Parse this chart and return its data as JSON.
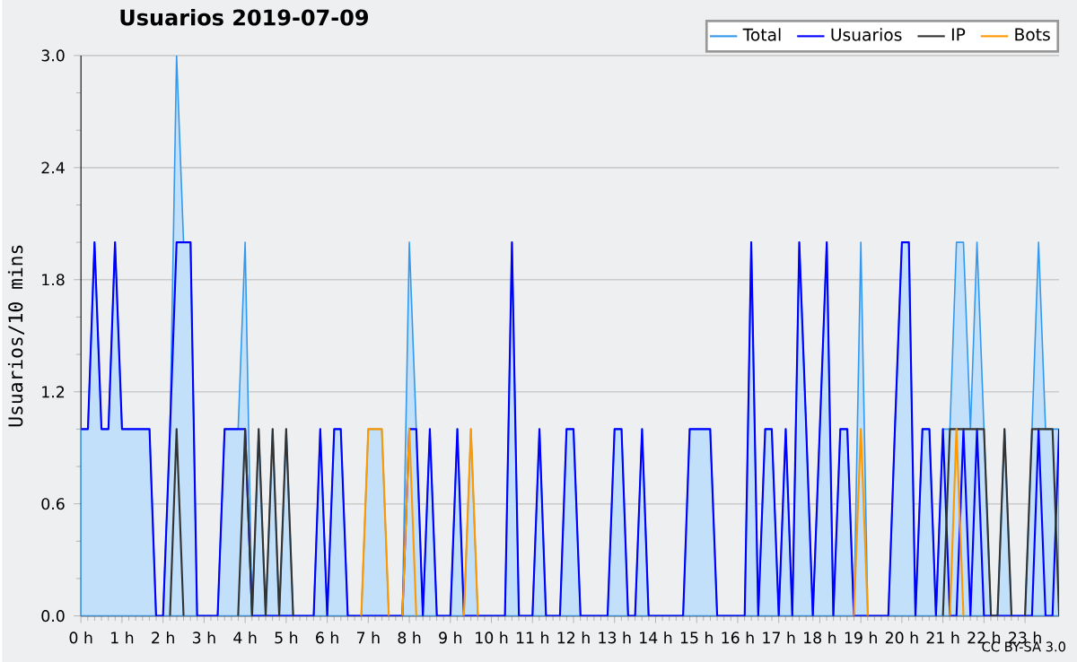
{
  "chart_data": {
    "type": "line",
    "title": "Usuarios  2019-07-09",
    "ylabel": "Usuarios/10 mins",
    "annotations": [
      "CC BY-SA 3.0"
    ],
    "x": [
      0,
      0.17,
      0.33,
      0.5,
      0.67,
      0.83,
      1,
      1.17,
      1.33,
      1.5,
      1.67,
      1.83,
      2,
      2.17,
      2.33,
      2.5,
      2.67,
      2.83,
      3,
      3.17,
      3.33,
      3.5,
      3.67,
      3.83,
      4,
      4.17,
      4.33,
      4.5,
      4.67,
      4.83,
      5,
      5.17,
      5.33,
      5.5,
      5.67,
      5.83,
      6,
      6.17,
      6.33,
      6.5,
      6.67,
      6.83,
      7,
      7.17,
      7.33,
      7.5,
      7.67,
      7.83,
      8,
      8.17,
      8.33,
      8.5,
      8.67,
      8.83,
      9,
      9.17,
      9.33,
      9.5,
      9.67,
      9.83,
      10,
      10.17,
      10.33,
      10.5,
      10.67,
      10.83,
      11,
      11.17,
      11.33,
      11.5,
      11.67,
      11.83,
      12,
      12.17,
      12.33,
      12.5,
      12.67,
      12.83,
      13,
      13.17,
      13.33,
      13.5,
      13.67,
      13.83,
      14,
      14.17,
      14.33,
      14.5,
      14.67,
      14.83,
      15,
      15.17,
      15.33,
      15.5,
      15.67,
      15.83,
      16,
      16.17,
      16.33,
      16.5,
      16.67,
      16.83,
      17,
      17.17,
      17.33,
      17.5,
      17.67,
      17.83,
      18,
      18.17,
      18.33,
      18.5,
      18.67,
      18.83,
      19,
      19.17,
      19.33,
      19.5,
      19.67,
      19.83,
      20,
      20.17,
      20.33,
      20.5,
      20.67,
      20.83,
      21,
      21.17,
      21.33,
      21.5,
      21.67,
      21.83,
      22,
      22.17,
      22.33,
      22.5,
      22.67,
      22.83,
      23,
      23.17,
      23.33,
      23.5,
      23.67,
      23.83
    ],
    "series": [
      {
        "name": "Total",
        "type": "area",
        "color": "#3399ee",
        "values": [
          1,
          1,
          2,
          1,
          1,
          2,
          1,
          1,
          1,
          1,
          1,
          0,
          0,
          1,
          3,
          2,
          2,
          0,
          0,
          0,
          0,
          1,
          1,
          1,
          2,
          0,
          1,
          0,
          1,
          0,
          1,
          0,
          0,
          0,
          0,
          1,
          0,
          1,
          1,
          0,
          0,
          0,
          1,
          1,
          1,
          0,
          0,
          0,
          2,
          1,
          0,
          1,
          0,
          0,
          0,
          1,
          0,
          1,
          0,
          0,
          0,
          0,
          0,
          2,
          0,
          0,
          0,
          1,
          0,
          0,
          0,
          1,
          1,
          0,
          0,
          0,
          0,
          0,
          1,
          1,
          0,
          0,
          1,
          0,
          0,
          0,
          0,
          0,
          0,
          1,
          1,
          1,
          1,
          0,
          0,
          0,
          0,
          0,
          2,
          0,
          1,
          1,
          0,
          1,
          0,
          2,
          1,
          0,
          1,
          2,
          0,
          1,
          1,
          0,
          2,
          0,
          0,
          0,
          0,
          1,
          2,
          2,
          0,
          1,
          1,
          0,
          1,
          1,
          2,
          2,
          1,
          2,
          1,
          0,
          0,
          1,
          0,
          0,
          0,
          1,
          2,
          1,
          1,
          1
        ]
      },
      {
        "name": "Usuarios",
        "type": "line",
        "color": "#0000ff",
        "values": [
          1,
          1,
          2,
          1,
          1,
          2,
          1,
          1,
          1,
          1,
          1,
          0,
          0,
          1,
          2,
          2,
          2,
          0,
          0,
          0,
          0,
          1,
          1,
          1,
          1,
          0,
          0,
          0,
          0,
          0,
          0,
          0,
          0,
          0,
          0,
          1,
          0,
          1,
          1,
          0,
          0,
          0,
          0,
          0,
          0,
          0,
          0,
          0,
          1,
          1,
          0,
          1,
          0,
          0,
          0,
          1,
          0,
          0,
          0,
          0,
          0,
          0,
          0,
          2,
          0,
          0,
          0,
          1,
          0,
          0,
          0,
          1,
          1,
          0,
          0,
          0,
          0,
          0,
          1,
          1,
          0,
          0,
          1,
          0,
          0,
          0,
          0,
          0,
          0,
          1,
          1,
          1,
          1,
          0,
          0,
          0,
          0,
          0,
          2,
          0,
          1,
          1,
          0,
          1,
          0,
          2,
          1,
          0,
          1,
          2,
          0,
          1,
          1,
          0,
          0,
          0,
          0,
          0,
          0,
          1,
          2,
          2,
          0,
          1,
          1,
          0,
          1,
          0,
          0,
          1,
          0,
          1,
          0,
          0,
          0,
          0,
          0,
          0,
          0,
          0,
          1,
          0,
          0,
          1
        ]
      },
      {
        "name": "IP",
        "type": "line",
        "color": "#333333",
        "x": [
          2.17,
          2.33,
          2.5,
          3,
          3.83,
          4,
          4.17,
          4.33,
          4.5,
          4.67,
          4.83,
          5,
          5.17,
          12,
          21,
          21.17,
          21.33,
          21.5,
          21.67,
          21.83,
          22,
          22.17,
          22.33,
          22.5,
          22.67,
          22.83,
          23,
          23.17,
          23.33,
          23.5,
          23.67,
          23.83
        ],
        "values": [
          0,
          1,
          0,
          null,
          0,
          1,
          0,
          1,
          0,
          1,
          0,
          1,
          0,
          null,
          0,
          1,
          1,
          1,
          1,
          1,
          1,
          0,
          0,
          1,
          0,
          null,
          0,
          1,
          1,
          1,
          1,
          0
        ]
      },
      {
        "name": "Bots",
        "type": "line",
        "color": "#ff9900",
        "x": [
          6.83,
          7,
          7.17,
          7.33,
          7.5,
          7.67,
          7.83,
          8,
          8.17,
          9,
          9.33,
          9.5,
          9.67,
          15,
          18.83,
          19,
          19.17,
          20,
          21.17,
          21.33,
          21.5
        ],
        "values": [
          0,
          1,
          1,
          1,
          0,
          null,
          0,
          1,
          0,
          null,
          0,
          1,
          0,
          null,
          0,
          1,
          0,
          null,
          0,
          1,
          0
        ]
      }
    ],
    "xlim": [
      0,
      23.83
    ],
    "xticks": [
      {
        "value": 0,
        "label": "0 h"
      },
      {
        "value": 1,
        "label": "1 h"
      },
      {
        "value": 2,
        "label": "2 h"
      },
      {
        "value": 3,
        "label": "3 h"
      },
      {
        "value": 4,
        "label": "4 h"
      },
      {
        "value": 5,
        "label": "5 h"
      },
      {
        "value": 6,
        "label": "6 h"
      },
      {
        "value": 7,
        "label": "7 h"
      },
      {
        "value": 8,
        "label": "8 h"
      },
      {
        "value": 9,
        "label": "9 h"
      },
      {
        "value": 10,
        "label": "10 h"
      },
      {
        "value": 11,
        "label": "11 h"
      },
      {
        "value": 12,
        "label": "12 h"
      },
      {
        "value": 13,
        "label": "13 h"
      },
      {
        "value": 14,
        "label": "14 h"
      },
      {
        "value": 15,
        "label": "15 h"
      },
      {
        "value": 16,
        "label": "16 h"
      },
      {
        "value": 17,
        "label": "17 h"
      },
      {
        "value": 18,
        "label": "18 h"
      },
      {
        "value": 19,
        "label": "19 h"
      },
      {
        "value": 20,
        "label": "20 h"
      },
      {
        "value": 21,
        "label": "21 h"
      },
      {
        "value": 22,
        "label": "22 h"
      },
      {
        "value": 23,
        "label": "23 h"
      }
    ],
    "ylim": [
      0,
      3
    ],
    "yticks": [
      {
        "value": 0,
        "label": "0.0"
      },
      {
        "value": 0.6,
        "label": "0.6"
      },
      {
        "value": 1.2,
        "label": "1.2"
      },
      {
        "value": 1.8,
        "label": "1.8"
      },
      {
        "value": 2.4,
        "label": "2.4"
      },
      {
        "value": 3,
        "label": "3.0"
      }
    ],
    "grid": "y",
    "legend": "top right",
    "marker": "none",
    "line_style": "solid"
  }
}
